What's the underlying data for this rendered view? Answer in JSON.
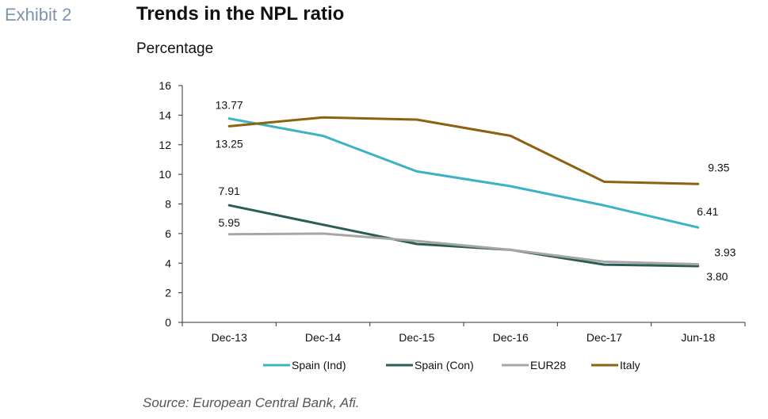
{
  "header": {
    "exhibit": "Exhibit 2",
    "title": "Trends in the NPL ratio",
    "subtitle": "Percentage"
  },
  "footer": {
    "source": "Source: European Central Bank, Afi."
  },
  "chart_data": {
    "type": "line",
    "title": "Trends in the NPL ratio",
    "subtitle": "Percentage",
    "xlabel": "",
    "ylabel": "",
    "categories": [
      "Dec-13",
      "Dec-14",
      "Dec-15",
      "Dec-16",
      "Dec-17",
      "Jun-18"
    ],
    "ylim": [
      0,
      16
    ],
    "yticks": [
      0,
      2,
      4,
      6,
      8,
      10,
      12,
      14,
      16
    ],
    "grid": false,
    "legend": "bottom",
    "series": [
      {
        "name": "Spain (Ind)",
        "color": "#3bb3c3",
        "values": [
          13.77,
          12.6,
          10.2,
          9.2,
          7.9,
          6.41
        ]
      },
      {
        "name": "Spain (Con)",
        "color": "#2a5d55",
        "values": [
          7.91,
          6.6,
          5.3,
          4.9,
          3.9,
          3.8
        ]
      },
      {
        "name": "EUR28",
        "color": "#a6a6a6",
        "values": [
          5.95,
          6.0,
          5.5,
          4.9,
          4.1,
          3.93
        ]
      },
      {
        "name": "Italy",
        "color": "#8c6210",
        "values": [
          13.25,
          13.85,
          13.7,
          12.6,
          9.5,
          9.35
        ]
      }
    ],
    "annotations": [
      {
        "series": "Spain (Ind)",
        "category": "Dec-13",
        "text": "13.77"
      },
      {
        "series": "Italy",
        "category": "Dec-13",
        "text": "13.25"
      },
      {
        "series": "Spain (Con)",
        "category": "Dec-13",
        "text": "7.91"
      },
      {
        "series": "EUR28",
        "category": "Dec-13",
        "text": "5.95"
      },
      {
        "series": "Italy",
        "category": "Jun-18",
        "text": "9.35"
      },
      {
        "series": "Spain (Ind)",
        "category": "Jun-18",
        "text": "6.41"
      },
      {
        "series": "EUR28",
        "category": "Jun-18",
        "text": "3.93"
      },
      {
        "series": "Spain (Con)",
        "category": "Jun-18",
        "text": "3.80"
      }
    ]
  }
}
